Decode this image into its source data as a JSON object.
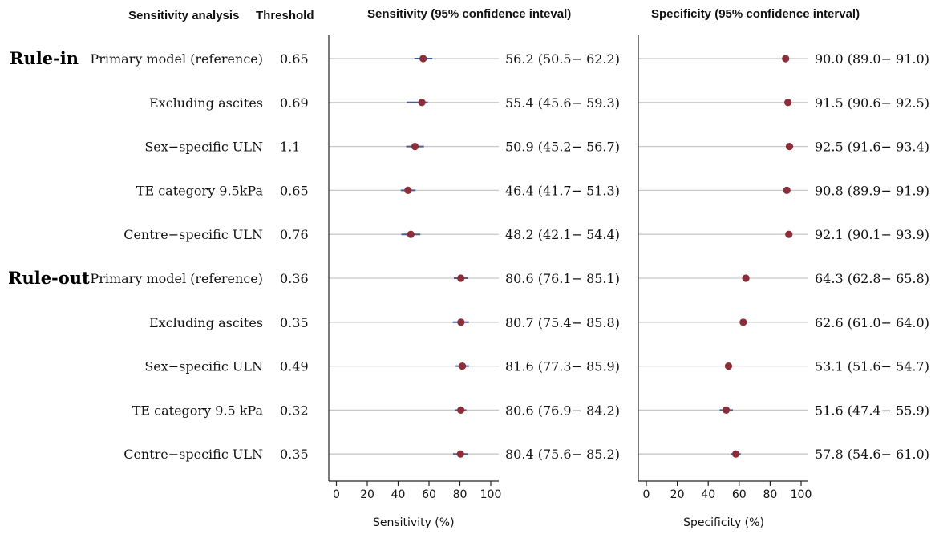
{
  "headers": {
    "analysis": "Sensitivity analysis",
    "threshold": "Threshold",
    "sensitivity": "Sensitivity (95% confidence inteval)",
    "specificity": "Specificity (95% confidence interval)"
  },
  "groups": [
    {
      "label": "Rule-in"
    },
    {
      "label": "Rule-out"
    }
  ],
  "colors": {
    "point": "#8b2e3a",
    "ci": "#4a5a92",
    "guide": "#c8c8c8"
  },
  "chart_data": {
    "type": "forest",
    "panels": [
      {
        "key": "sensitivity",
        "xlabel": "Sensitivity (%)",
        "xlim": [
          -5,
          105
        ],
        "xticks": [
          0,
          20,
          40,
          60,
          80,
          100
        ]
      },
      {
        "key": "specificity",
        "xlabel": "Specificity (%)",
        "xlim": [
          -5,
          105
        ],
        "xticks": [
          0,
          20,
          40,
          60,
          80,
          100
        ]
      }
    ],
    "rows": [
      {
        "group": "Rule-in",
        "analysis": "Primary model (reference)",
        "threshold": "0.65",
        "sensitivity": {
          "est": 56.2,
          "lo": 50.5,
          "hi": 62.2,
          "text": "56.2 (50.5− 62.2)"
        },
        "specificity": {
          "est": 90.0,
          "lo": 89.0,
          "hi": 91.0,
          "text": "90.0 (89.0− 91.0)"
        }
      },
      {
        "group": "Rule-in",
        "analysis": "Excluding ascites",
        "threshold": "0.69",
        "sensitivity": {
          "est": 55.4,
          "lo": 45.6,
          "hi": 59.3,
          "text": "55.4 (45.6− 59.3)"
        },
        "specificity": {
          "est": 91.5,
          "lo": 90.6,
          "hi": 92.5,
          "text": "91.5 (90.6− 92.5)"
        }
      },
      {
        "group": "Rule-in",
        "analysis": "Sex−specific ULN",
        "threshold": "1.1",
        "sensitivity": {
          "est": 50.9,
          "lo": 45.2,
          "hi": 56.7,
          "text": "50.9 (45.2− 56.7)"
        },
        "specificity": {
          "est": 92.5,
          "lo": 91.6,
          "hi": 93.4,
          "text": "92.5 (91.6− 93.4)"
        }
      },
      {
        "group": "Rule-in",
        "analysis": "TE category 9.5kPa",
        "threshold": "0.65",
        "sensitivity": {
          "est": 46.4,
          "lo": 41.7,
          "hi": 51.3,
          "text": "46.4 (41.7− 51.3)"
        },
        "specificity": {
          "est": 90.8,
          "lo": 89.9,
          "hi": 91.9,
          "text": "90.8 (89.9− 91.9)"
        }
      },
      {
        "group": "Rule-in",
        "analysis": "Centre−specific ULN",
        "threshold": "0.76",
        "sensitivity": {
          "est": 48.2,
          "lo": 42.1,
          "hi": 54.4,
          "text": "48.2 (42.1− 54.4)"
        },
        "specificity": {
          "est": 92.1,
          "lo": 90.1,
          "hi": 93.9,
          "text": "92.1 (90.1− 93.9)"
        }
      },
      {
        "group": "Rule-out",
        "analysis": "Primary model (reference)",
        "threshold": "0.36",
        "sensitivity": {
          "est": 80.6,
          "lo": 76.1,
          "hi": 85.1,
          "text": "80.6 (76.1− 85.1)"
        },
        "specificity": {
          "est": 64.3,
          "lo": 62.8,
          "hi": 65.8,
          "text": "64.3 (62.8− 65.8)"
        }
      },
      {
        "group": "Rule-out",
        "analysis": "Excluding ascites",
        "threshold": "0.35",
        "sensitivity": {
          "est": 80.7,
          "lo": 75.4,
          "hi": 85.8,
          "text": "80.7 (75.4− 85.8)"
        },
        "specificity": {
          "est": 62.6,
          "lo": 61.0,
          "hi": 64.0,
          "text": "62.6 (61.0− 64.0)"
        }
      },
      {
        "group": "Rule-out",
        "analysis": "Sex−specific ULN",
        "threshold": "0.49",
        "sensitivity": {
          "est": 81.6,
          "lo": 77.3,
          "hi": 85.9,
          "text": "81.6 (77.3− 85.9)"
        },
        "specificity": {
          "est": 53.1,
          "lo": 51.6,
          "hi": 54.7,
          "text": "53.1 (51.6− 54.7)"
        }
      },
      {
        "group": "Rule-out",
        "analysis": "TE category 9.5 kPa",
        "threshold": "0.32",
        "sensitivity": {
          "est": 80.6,
          "lo": 76.9,
          "hi": 84.2,
          "text": "80.6 (76.9− 84.2)"
        },
        "specificity": {
          "est": 51.6,
          "lo": 47.4,
          "hi": 55.9,
          "text": "51.6 (47.4− 55.9)"
        }
      },
      {
        "group": "Rule-out",
        "analysis": "Centre−specific ULN",
        "threshold": "0.35",
        "sensitivity": {
          "est": 80.4,
          "lo": 75.6,
          "hi": 85.2,
          "text": "80.4 (75.6− 85.2)"
        },
        "specificity": {
          "est": 57.8,
          "lo": 54.6,
          "hi": 61.0,
          "text": "57.8 (54.6− 61.0)"
        }
      }
    ]
  }
}
